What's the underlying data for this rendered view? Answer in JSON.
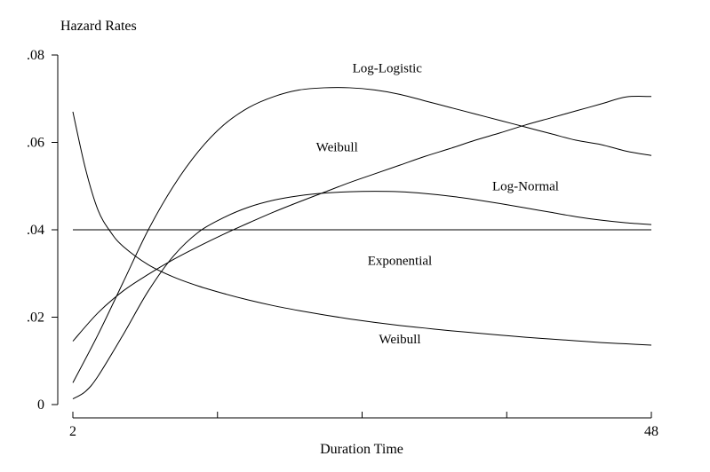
{
  "chart_data": {
    "type": "line",
    "ylabel": "Hazard Rates",
    "xlabel": "Duration Time",
    "xlim": [
      2,
      48
    ],
    "ylim": [
      0,
      0.08
    ],
    "x_tick_values": [
      2,
      13.5,
      25,
      36.5,
      48
    ],
    "x_tick_labels": [
      "2",
      "",
      "",
      "",
      "48"
    ],
    "y_tick_values": [
      0,
      0.02,
      0.04,
      0.06,
      0.08
    ],
    "y_tick_labels": [
      "0",
      ".02",
      ".04",
      ".06",
      ".08"
    ],
    "grid": false,
    "series": [
      {
        "name": "Log-Logistic",
        "x": [
          2,
          4,
          6,
          8,
          10,
          12,
          14,
          16,
          18,
          20,
          22,
          24,
          26,
          28,
          30,
          32,
          34,
          36,
          38,
          40,
          42,
          44,
          46,
          48
        ],
        "y": [
          0.005,
          0.016,
          0.028,
          0.04,
          0.05,
          0.058,
          0.064,
          0.068,
          0.0705,
          0.072,
          0.0725,
          0.0725,
          0.072,
          0.071,
          0.0695,
          0.068,
          0.0665,
          0.065,
          0.0635,
          0.062,
          0.0605,
          0.0595,
          0.058,
          0.057
        ]
      },
      {
        "name": "Weibull",
        "x": [
          2,
          4,
          6,
          8,
          10,
          12,
          14,
          16,
          18,
          20,
          22,
          24,
          26,
          28,
          30,
          32,
          34,
          36,
          38,
          40,
          42,
          44,
          46,
          48
        ],
        "y": [
          0.0145,
          0.021,
          0.026,
          0.0298,
          0.0332,
          0.0362,
          0.039,
          0.0416,
          0.0441,
          0.0464,
          0.0486,
          0.0508,
          0.0528,
          0.0548,
          0.0568,
          0.0586,
          0.0605,
          0.0622,
          0.064,
          0.0656,
          0.0672,
          0.0688,
          0.0704,
          0.0705
        ]
      },
      {
        "name": "Log-Normal",
        "x": [
          2,
          3,
          4,
          6,
          8,
          10,
          12,
          14,
          16,
          18,
          20,
          22,
          24,
          26,
          28,
          30,
          32,
          34,
          36,
          38,
          40,
          42,
          44,
          46,
          48
        ],
        "y": [
          0.0013,
          0.003,
          0.0065,
          0.016,
          0.026,
          0.034,
          0.0395,
          0.0428,
          0.0452,
          0.0468,
          0.0478,
          0.0484,
          0.0487,
          0.0488,
          0.0487,
          0.0483,
          0.0477,
          0.0469,
          0.046,
          0.045,
          0.044,
          0.043,
          0.0422,
          0.0416,
          0.0412
        ]
      },
      {
        "name": "Exponential",
        "x": [
          2,
          48
        ],
        "y": [
          0.04,
          0.04
        ]
      },
      {
        "name": "Weibull",
        "x": [
          2,
          3,
          4,
          5,
          6,
          8,
          10,
          12,
          14,
          16,
          18,
          20,
          22,
          24,
          26,
          28,
          30,
          32,
          34,
          36,
          38,
          40,
          42,
          44,
          46,
          48
        ],
        "y": [
          0.067,
          0.054,
          0.0445,
          0.0395,
          0.0362,
          0.032,
          0.0292,
          0.0271,
          0.0254,
          0.0239,
          0.0226,
          0.0215,
          0.0205,
          0.0196,
          0.0188,
          0.0181,
          0.0175,
          0.0169,
          0.0164,
          0.0159,
          0.0154,
          0.015,
          0.0146,
          0.0142,
          0.0139,
          0.0136
        ]
      }
    ],
    "annotations": [
      {
        "text": "Log-Logistic",
        "x": 27,
        "y": 0.076
      },
      {
        "text": "Weibull",
        "x": 23,
        "y": 0.058
      },
      {
        "text": "Log-Normal",
        "x": 38,
        "y": 0.049
      },
      {
        "text": "Exponential",
        "x": 28,
        "y": 0.032
      },
      {
        "text": "Weibull",
        "x": 28,
        "y": 0.014
      }
    ]
  }
}
